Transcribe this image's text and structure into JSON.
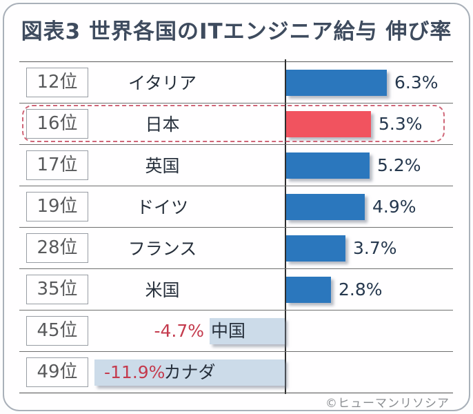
{
  "title": "図表3  世界各国のITエンジニア給与 伸び率",
  "footer": {
    "credit": "©ヒューマンリソシア"
  },
  "colors": {
    "title_text": "#3e4b5e",
    "positive_bar": "#2b77bd",
    "highlight_bar": "#f1535f",
    "negative_bar": "#ccdbe9",
    "negative_value_text": "#c43a4d",
    "highlight_ring": "#cf6577",
    "frame_border": "#a9b0b9",
    "rank_text": "#58595b",
    "value_text": "#26384e"
  },
  "chart_data": {
    "type": "bar",
    "orientation": "horizontal",
    "title": "図表3  世界各国のITエンジニア給与 伸び率",
    "unit": "%",
    "categories": [
      "イタリア",
      "日本",
      "英国",
      "ドイツ",
      "フランス",
      "米国",
      "中国",
      "カナダ"
    ],
    "ranks": [
      "12位",
      "16位",
      "17位",
      "19位",
      "28位",
      "35位",
      "45位",
      "49位"
    ],
    "values": [
      6.3,
      5.3,
      5.2,
      4.9,
      3.7,
      2.8,
      -4.7,
      -11.9
    ],
    "value_labels": [
      "6.3%",
      "5.3%",
      "5.2%",
      "4.9%",
      "3.7%",
      "2.8%",
      "-4.7%",
      "-11.9%"
    ],
    "highlight_category": "日本",
    "baseline": 0,
    "grid": "row-separators",
    "legend": "none",
    "credit": "©ヒューマンリソシア"
  },
  "rows": [
    {
      "rank": "12位",
      "country": "イタリア",
      "value": 6.3,
      "label": "6.3%",
      "variant": "positive"
    },
    {
      "rank": "16位",
      "country": "日本",
      "value": 5.3,
      "label": "5.3%",
      "variant": "highlight"
    },
    {
      "rank": "17位",
      "country": "英国",
      "value": 5.2,
      "label": "5.2%",
      "variant": "positive"
    },
    {
      "rank": "19位",
      "country": "ドイツ",
      "value": 4.9,
      "label": "4.9%",
      "variant": "positive"
    },
    {
      "rank": "28位",
      "country": "フランス",
      "value": 3.7,
      "label": "3.7%",
      "variant": "positive"
    },
    {
      "rank": "35位",
      "country": "米国",
      "value": 2.8,
      "label": "2.8%",
      "variant": "positive"
    },
    {
      "rank": "45位",
      "country": "中国",
      "value": -4.7,
      "label": "-4.7%",
      "variant": "negative-outside"
    },
    {
      "rank": "49位",
      "country": "カナダ",
      "value": -11.9,
      "label": "-11.9%",
      "variant": "negative-inside"
    }
  ]
}
